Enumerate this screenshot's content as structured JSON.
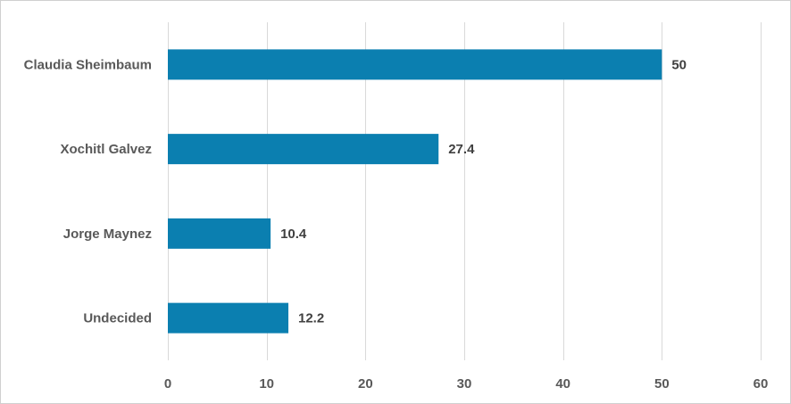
{
  "chart_data": {
    "type": "bar",
    "orientation": "horizontal",
    "categories": [
      "Claudia Sheimbaum",
      "Xochitl Galvez",
      "Jorge Maynez",
      "Undecided"
    ],
    "values": [
      50,
      27.4,
      10.4,
      12.2
    ],
    "data_labels": [
      "50",
      "27.4",
      "10.4",
      "12.2"
    ],
    "xlim": [
      0,
      60
    ],
    "x_ticks": [
      0,
      10,
      20,
      30,
      40,
      50,
      60
    ],
    "x_tick_labels": [
      "0",
      "10",
      "20",
      "30",
      "40",
      "50",
      "60"
    ],
    "grid": "vertical",
    "legend": "none",
    "colors": {
      "bar": "#0b7fb0",
      "grid": "#d9d9d9",
      "text": "#595959",
      "data_label": "#404040"
    }
  }
}
